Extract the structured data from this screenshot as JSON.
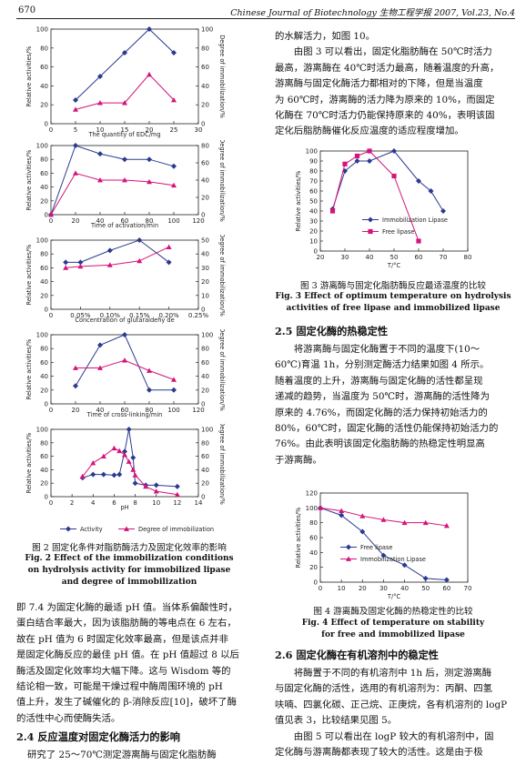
{
  "header": {
    "page_number": "670",
    "journal": "Chinese Journal of Biotechnology   生物工程学报   2007, Vol.23, No.4"
  },
  "left_column": {
    "fig2_caption_zh": "图 2   固定化条件对脂肪酶活力及固定化效率的影响",
    "fig2_caption_en_1": "Fig. 2   Effect of the immobilization conditions",
    "fig2_caption_en_2": "on hydrolysis activity for immobilized lipase",
    "fig2_caption_en_3": "and degree of immobilization",
    "lines": [
      "即 7.4 为固定化酶的最适 pH 值。当体系偏酸性时，",
      "蛋白结合率最大，因为该脂肪酶的等电点在 6 左右，",
      "故在 pH 值为 6 时固定化效率最高，但是该点并非",
      "是固定化酶反应的最佳 pH 值。在 pH 值超过 8 以后",
      "酶活及固定化效率均大幅下降。这与 Wisdom 等的",
      "结论相一致，可能是干燥过程中酶周围环境的 pH",
      "值上升，发生了碱催化的 β-消除反应[10]，破坏了酶",
      "的活性中心而使酶失活。"
    ],
    "section_2_4": "2.4   反应温度对固定化酶活力的影响",
    "line_2_4": "研究了 25～70℃测定游离酶与固定化脂肪酶"
  },
  "right_column": {
    "para1": [
      "的水解活力，如图 10。",
      "由图 3 可以看出，固定化脂肪酶在 50℃时活力",
      "最高，游离酶在 40℃时活力最高，随着温度的升高，",
      "游离酶与固定化酶活力都相对的下降，但是当温度",
      "为 60℃时，游离酶的活力降为原来的 10%，而固定",
      "化酶在 70℃时活力仍能保持原来的 40%，表明该固",
      "定化后脂肪酶催化反应温度的适应程度增加。"
    ],
    "fig3_caption_zh": "图 3   游离酶与固定化脂肪酶反应最适温度的比较",
    "fig3_caption_en_1": "Fig. 3   Effect of optimum temperature on hydrolysis",
    "fig3_caption_en_2": "activities of free lipase and immobilized lipase",
    "section_2_5": "2.5   固定化酶的热稳定性",
    "para2": [
      "将游离酶与固定化酶置于不同的温度下(10～",
      "60℃)育温  1h，分别测定酶活力结果如图 4 所示。",
      "随着温度的上升，游离酶与固定化酶的活性都呈现",
      "递减的趋势，当温度为 50℃时，游离酶的活性降为",
      "原来的 4.76%，而固定化酶的活力保持初始活力的",
      "80%，60℃时，固定化酶的活性仍能保持初始活力的",
      "76%。由此表明该固定化脂肪酶的热稳定性明显高",
      "于游离酶。"
    ],
    "fig4_caption_zh": "图 4   游离酶及固定化酶的热稳定性的比较",
    "fig4_caption_en_1": "Fig. 4   Effect of temperature on stability",
    "fig4_caption_en_2": "for free and immobilized lipase",
    "section_2_6": "2.6   固定化酶在有机溶剂中的稳定性",
    "para3": [
      "将酶置于不同的有机溶剂中 1h 后，测定游离酶",
      "与固定化酶的活性，选用的有机溶剂为：丙酮、四氢",
      "呋喃、四氯化碳、正己烷、正庚烷，各有机溶剂的 logP",
      "值见表 3，比较结果见图 5。",
      "由图 5 可以看出在 logP 较大的有机溶剂中，固",
      "定化酶与游离酶都表现了较大的活性。这是由于极"
    ]
  },
  "chart_data": [
    {
      "id": "fig2a",
      "type": "line",
      "xlabel": "The quantity of EDC/mg",
      "ylabel": "Relative activities/%",
      "ylabel_right": "Degree of immobilization/%",
      "x": [
        5,
        10,
        15,
        20,
        25
      ],
      "xlim": [
        0,
        30
      ],
      "ylim": [
        0,
        100
      ],
      "ylim_right": [
        0,
        100
      ],
      "xticks": [
        "0",
        "5",
        "10",
        "15",
        "20",
        "25",
        "30"
      ],
      "yticks": [
        "0",
        "20",
        "40",
        "60",
        "80",
        "100"
      ],
      "yticks_right": [
        "0",
        "20",
        "40",
        "60",
        "80",
        "100"
      ],
      "series": [
        {
          "axis": "left",
          "values": [
            25,
            50,
            75,
            100,
            75
          ],
          "color": "#2b3a8f",
          "marker": "diamond"
        },
        {
          "axis": "right",
          "values": [
            15,
            22,
            22,
            52,
            25
          ],
          "color": "#d4147a",
          "marker": "triangle"
        }
      ]
    },
    {
      "id": "fig2b",
      "type": "line",
      "xlabel": "Time of activation/min",
      "ylabel": "Relative activities/%",
      "ylabel_right": "Degree of immobilization/%",
      "x": [
        0,
        20,
        40,
        60,
        80,
        100
      ],
      "xlim": [
        0,
        120
      ],
      "ylim": [
        0,
        100
      ],
      "ylim_right": [
        0,
        80
      ],
      "xticks": [
        "0",
        "20",
        "40",
        "60",
        "80",
        "100",
        "120"
      ],
      "yticks": [
        "0",
        "20",
        "40",
        "60",
        "80",
        "100"
      ],
      "yticks_right": [
        "0",
        "20",
        "40",
        "60",
        "80"
      ],
      "series": [
        {
          "axis": "left",
          "values": [
            0,
            100,
            88,
            80,
            80,
            70
          ],
          "color": "#2b3a8f",
          "marker": "diamond"
        },
        {
          "axis": "right",
          "values": [
            0,
            48,
            40,
            40,
            38,
            34
          ],
          "color": "#d4147a",
          "marker": "triangle"
        }
      ]
    },
    {
      "id": "fig2c",
      "type": "line",
      "xlabel": "Concentration of glutaraldehy de",
      "ylabel": "Relative activities/%",
      "ylabel_right": "Degree of immobilization/%",
      "x": [
        0.025,
        0.05,
        0.1,
        0.15,
        0.2
      ],
      "xlim": [
        0,
        0.25
      ],
      "ylim": [
        0,
        100
      ],
      "ylim_right": [
        0,
        50
      ],
      "xticks": [
        "0",
        "0.05%",
        "0.10%",
        "0.15%",
        "0.20%",
        "0.25%"
      ],
      "yticks": [
        "0",
        "20",
        "40",
        "60",
        "80",
        "100"
      ],
      "yticks_right": [
        "0",
        "10",
        "20",
        "30",
        "40",
        "50"
      ],
      "series": [
        {
          "axis": "left",
          "values": [
            68,
            68,
            85,
            100,
            68
          ],
          "color": "#2b3a8f",
          "marker": "diamond"
        },
        {
          "axis": "right",
          "values": [
            30,
            31,
            32,
            35,
            45
          ],
          "color": "#d4147a",
          "marker": "triangle"
        }
      ]
    },
    {
      "id": "fig2d",
      "type": "line",
      "xlabel": "Time of cross-linking/min",
      "ylabel": "Relative activities/%",
      "ylabel_right": "Degree of immobilization/%",
      "x": [
        20,
        40,
        60,
        80,
        100
      ],
      "xlim": [
        0,
        120
      ],
      "ylim": [
        0,
        100
      ],
      "ylim_right": [
        0,
        100
      ],
      "xticks": [
        "0",
        "20",
        "40",
        "60",
        "80",
        "100",
        "120"
      ],
      "yticks": [
        "0",
        "20",
        "40",
        "60",
        "80",
        "100"
      ],
      "yticks_right": [
        "0",
        "20",
        "40",
        "60",
        "80",
        "100"
      ],
      "series": [
        {
          "axis": "left",
          "values": [
            26,
            85,
            100,
            20,
            20
          ],
          "color": "#2b3a8f",
          "marker": "diamond"
        },
        {
          "axis": "right",
          "values": [
            52,
            52,
            63,
            48,
            35
          ],
          "color": "#d4147a",
          "marker": "triangle"
        }
      ]
    },
    {
      "id": "fig2e",
      "type": "line",
      "xlabel": "pH",
      "ylabel": "Relative activities/%",
      "ylabel_right": "Degree of immobilization/%",
      "x": [
        3,
        4,
        5,
        6,
        6.5,
        7,
        7.4,
        7.8,
        8,
        9,
        10,
        12
      ],
      "xlim": [
        0,
        14
      ],
      "ylim": [
        0,
        100
      ],
      "ylim_right": [
        0,
        100
      ],
      "xticks": [
        "0",
        "2",
        "4",
        "6",
        "8",
        "10",
        "12",
        "14"
      ],
      "yticks": [
        "0",
        "20",
        "40",
        "60",
        "80",
        "100"
      ],
      "yticks_right": [
        "0",
        "20",
        "40",
        "60",
        "80",
        "100"
      ],
      "series": [
        {
          "name": "Activity",
          "axis": "left",
          "values": [
            28,
            33,
            33,
            32,
            33,
            67,
            100,
            58,
            20,
            17,
            17,
            15
          ],
          "color": "#2b3a8f",
          "marker": "diamond"
        },
        {
          "name": "Degree of immobilization",
          "axis": "right",
          "values": [
            30,
            50,
            60,
            72,
            68,
            62,
            52,
            40,
            32,
            15,
            8,
            3
          ],
          "color": "#d4147a",
          "marker": "triangle"
        }
      ]
    },
    {
      "id": "fig3",
      "type": "line",
      "xlabel": "T/°C",
      "ylabel": "Relative activities/%",
      "x": [
        25,
        30,
        35,
        40,
        50,
        60,
        65,
        70
      ],
      "xlim": [
        20,
        80
      ],
      "ylim": [
        0,
        100
      ],
      "xticks": [
        "20",
        "30",
        "40",
        "50",
        "60",
        "70",
        "80"
      ],
      "yticks": [
        "0",
        "10",
        "20",
        "30",
        "40",
        "50",
        "60",
        "70",
        "80",
        "90",
        "100"
      ],
      "legend": "inside",
      "series": [
        {
          "name": "Immobilization Lipase",
          "values": [
            42,
            80,
            90,
            90,
            100,
            70,
            60,
            40
          ],
          "color": "#2b3a8f",
          "marker": "diamond"
        },
        {
          "name": "Free lipase",
          "values": [
            40,
            87,
            95,
            100,
            75,
            10
          ],
          "x": [
            25,
            30,
            35,
            40,
            50,
            60
          ],
          "color": "#d4147a",
          "marker": "square"
        }
      ]
    },
    {
      "id": "fig4",
      "type": "line",
      "xlabel": "T/°C",
      "ylabel": "Relative activities/%",
      "x": [
        0,
        10,
        20,
        30,
        40,
        50,
        60
      ],
      "xlim": [
        0,
        70
      ],
      "ylim": [
        0,
        120
      ],
      "xticks": [
        "0",
        "10",
        "20",
        "30",
        "40",
        "50",
        "60",
        "70"
      ],
      "yticks": [
        "0",
        "20",
        "40",
        "60",
        "80",
        "100",
        "120"
      ],
      "legend": "inside",
      "series": [
        {
          "name": "Free lipase",
          "values": [
            100,
            90,
            68,
            36,
            23,
            5,
            3
          ],
          "color": "#2b3a8f",
          "marker": "diamond"
        },
        {
          "name": "Immobilization Lipase",
          "values": [
            100,
            96,
            89,
            84,
            80,
            80,
            76
          ],
          "color": "#d4147a",
          "marker": "triangle"
        }
      ]
    }
  ]
}
